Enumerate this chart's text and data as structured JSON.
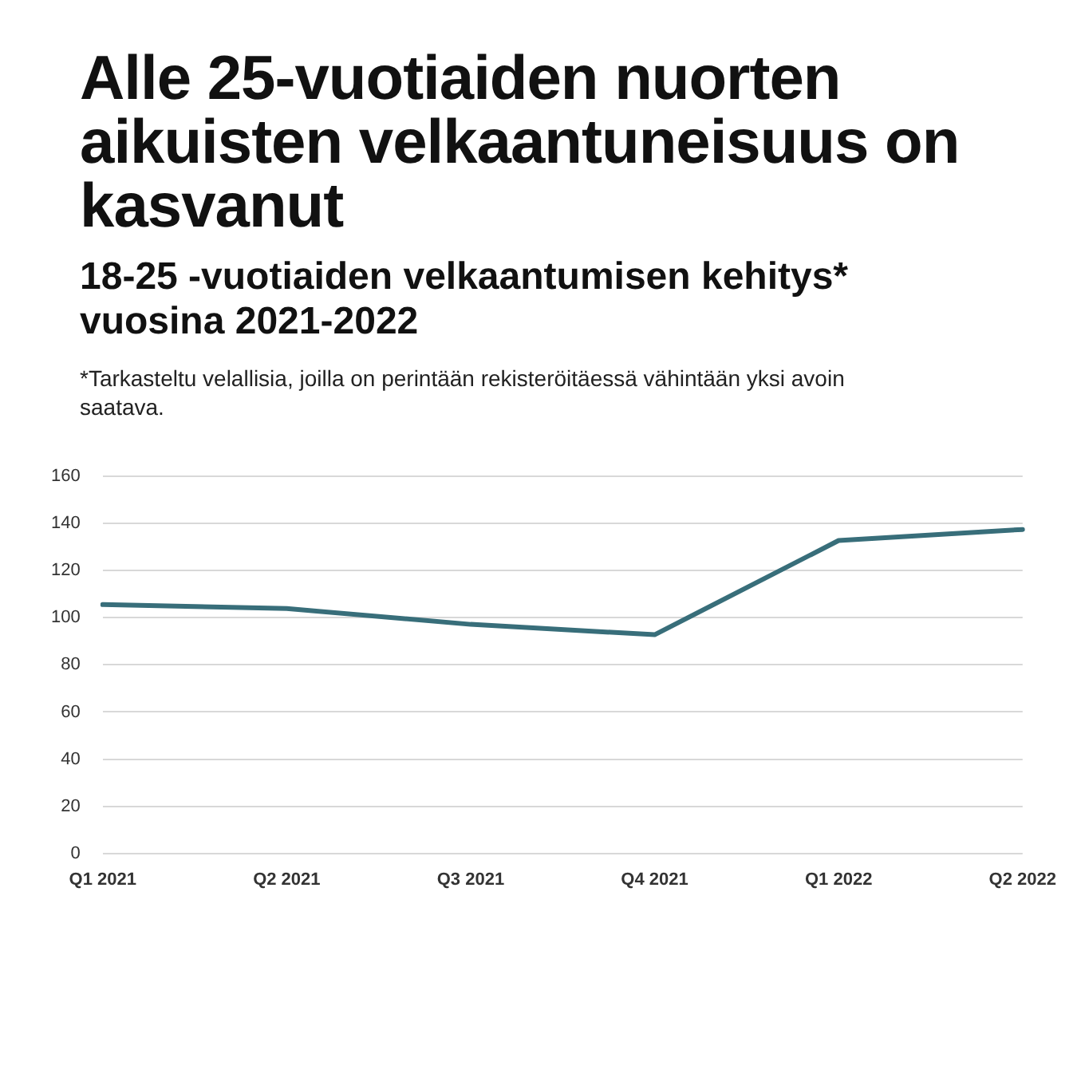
{
  "chart_data": {
    "type": "line",
    "title": "Alle 25-vuotiaiden nuorten aikuisten velkaantuneisuus on kasvanut",
    "subtitle": "18-25 -vuotiaiden velkaantumisen kehitys* vuosina 2021-2022",
    "annotations": [
      "*Tarkasteltu velallisia, joilla on perintään rekisteröitäessä vähintään yksi avoin saatava."
    ],
    "categories": [
      "Q1 2021",
      "Q2 2021",
      "Q3 2021",
      "Q4 2021",
      "Q1 2022",
      "Q2 2022"
    ],
    "series": [
      {
        "color": "#386e7a",
        "values": [
          105.6,
          103.9,
          97.2,
          92.8,
          132.8,
          137.5
        ]
      }
    ],
    "ylim": [
      0,
      160
    ],
    "yticks": [
      0,
      20,
      40,
      60,
      80,
      100,
      120,
      140,
      160
    ],
    "grid": "y",
    "marker": "none",
    "line_style": "solid"
  }
}
